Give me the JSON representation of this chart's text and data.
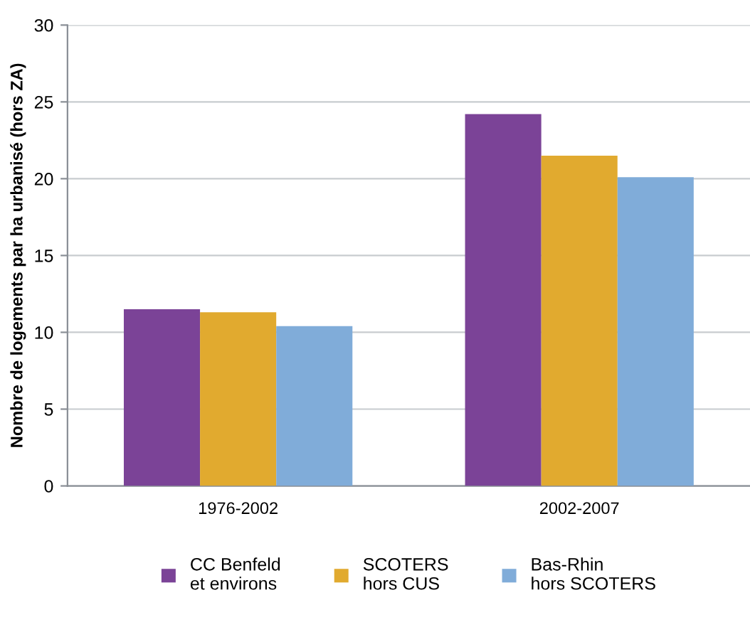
{
  "chart_data": {
    "type": "bar",
    "ylabel": "Nombre de logements par ha urbanisé (hors ZA)",
    "categories": [
      "1976-2002",
      "2002-2007"
    ],
    "series": [
      {
        "name": "CC Benfeld\net environs",
        "color": "#7b4397",
        "values": [
          11.5,
          24.2
        ]
      },
      {
        "name": "SCOTERS\nhors CUS",
        "color": "#e1aa2f",
        "values": [
          11.3,
          21.5
        ]
      },
      {
        "name": "Bas-Rhin\nhors SCOTERS",
        "color": "#80acd9",
        "values": [
          10.4,
          20.1
        ]
      }
    ],
    "ylim": [
      0,
      30
    ],
    "yticks": [
      0,
      5,
      10,
      15,
      20,
      25,
      30
    ],
    "grid": "y",
    "legend": "bottom"
  }
}
